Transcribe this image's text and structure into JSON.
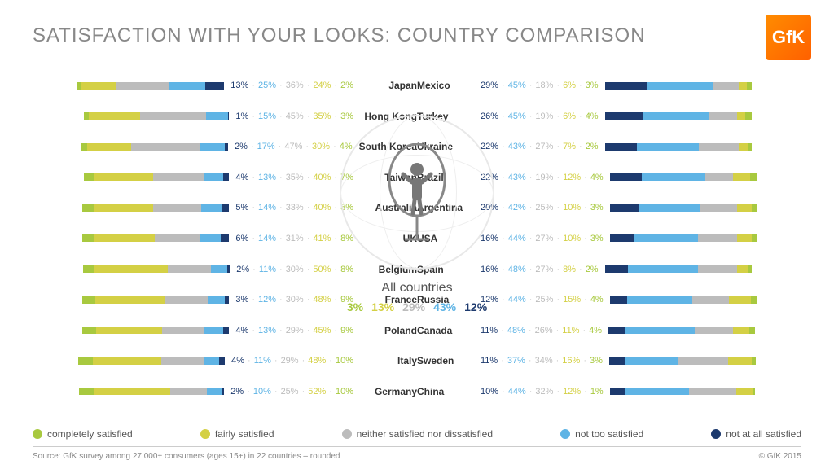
{
  "title": "SATISFACTION WITH YOUR LOOKS: COUNTRY COMPARISON",
  "logo": "GfK",
  "colors": {
    "completely": "#a8c93f",
    "fairly": "#d4d045",
    "neither": "#bcbcbc",
    "notTooSat": "#5fb4e5",
    "notAtAll": "#1d3a6e",
    "title": "#888888"
  },
  "center": {
    "label": "All countries",
    "values": [
      12,
      43,
      29,
      13,
      3
    ]
  },
  "left": [
    {
      "country": "Japan",
      "v": [
        13,
        25,
        36,
        24,
        2
      ]
    },
    {
      "country": "Hong Kong",
      "v": [
        1,
        15,
        45,
        35,
        3
      ]
    },
    {
      "country": "South Korea",
      "v": [
        2,
        17,
        47,
        30,
        4
      ]
    },
    {
      "country": "Taiwan",
      "v": [
        4,
        13,
        35,
        40,
        7
      ]
    },
    {
      "country": "Australia",
      "v": [
        5,
        14,
        33,
        40,
        8
      ]
    },
    {
      "country": "UK",
      "v": [
        6,
        14,
        31,
        41,
        8
      ]
    },
    {
      "country": "Belgium",
      "v": [
        2,
        11,
        30,
        50,
        8
      ]
    },
    {
      "country": "France",
      "v": [
        3,
        12,
        30,
        48,
        9
      ]
    },
    {
      "country": "Poland",
      "v": [
        4,
        13,
        29,
        45,
        9
      ]
    },
    {
      "country": "Italy",
      "v": [
        4,
        11,
        29,
        48,
        10
      ]
    },
    {
      "country": "Germany",
      "v": [
        2,
        10,
        25,
        52,
        10
      ]
    }
  ],
  "right": [
    {
      "country": "Mexico",
      "v": [
        29,
        45,
        18,
        6,
        3
      ]
    },
    {
      "country": "Turkey",
      "v": [
        26,
        45,
        19,
        6,
        4
      ]
    },
    {
      "country": "Ukraine",
      "v": [
        22,
        43,
        27,
        7,
        2
      ]
    },
    {
      "country": "Brazil",
      "v": [
        22,
        43,
        19,
        12,
        4
      ]
    },
    {
      "country": "Argentina",
      "v": [
        20,
        42,
        25,
        10,
        3
      ]
    },
    {
      "country": "USA",
      "v": [
        16,
        44,
        27,
        10,
        3
      ]
    },
    {
      "country": "Spain",
      "v": [
        16,
        48,
        27,
        8,
        2
      ]
    },
    {
      "country": "Russia",
      "v": [
        12,
        44,
        25,
        15,
        4
      ]
    },
    {
      "country": "Canada",
      "v": [
        11,
        48,
        26,
        11,
        4
      ]
    },
    {
      "country": "Sweden",
      "v": [
        11,
        37,
        34,
        16,
        3
      ]
    },
    {
      "country": "China",
      "v": [
        10,
        44,
        32,
        12,
        1
      ]
    }
  ],
  "legend": [
    {
      "label": "completely satisfied",
      "k": "completely"
    },
    {
      "label": "fairly satisfied",
      "k": "fairly"
    },
    {
      "label": "neither satisfied nor dissatisfied",
      "k": "neither"
    },
    {
      "label": "not too satisfied",
      "k": "notTooSat"
    },
    {
      "label": "not at all satisfied",
      "k": "notAtAll"
    }
  ],
  "footer": {
    "source": "Source: GfK survey among 27,000+ consumers (ages 15+) in 22 countries – rounded",
    "copy": "© GfK 2015"
  }
}
